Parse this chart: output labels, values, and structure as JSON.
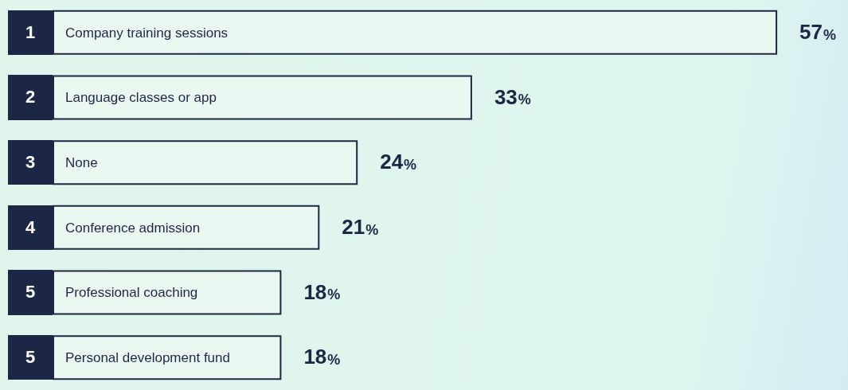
{
  "chart_data": {
    "type": "bar",
    "orientation": "horizontal",
    "categories": [
      "Company training sessions",
      "Language classes or app",
      "None",
      "Conference admission",
      "Professional coaching",
      "Personal development fund"
    ],
    "values": [
      57,
      33,
      24,
      21,
      18,
      18
    ],
    "value_labels": [
      "57%",
      "33%",
      "24%",
      "21%",
      "18%",
      "18%"
    ],
    "annotations": [
      "1",
      "2",
      "3",
      "4",
      "5",
      "5"
    ],
    "color": "#eaf8f1"
  }
}
